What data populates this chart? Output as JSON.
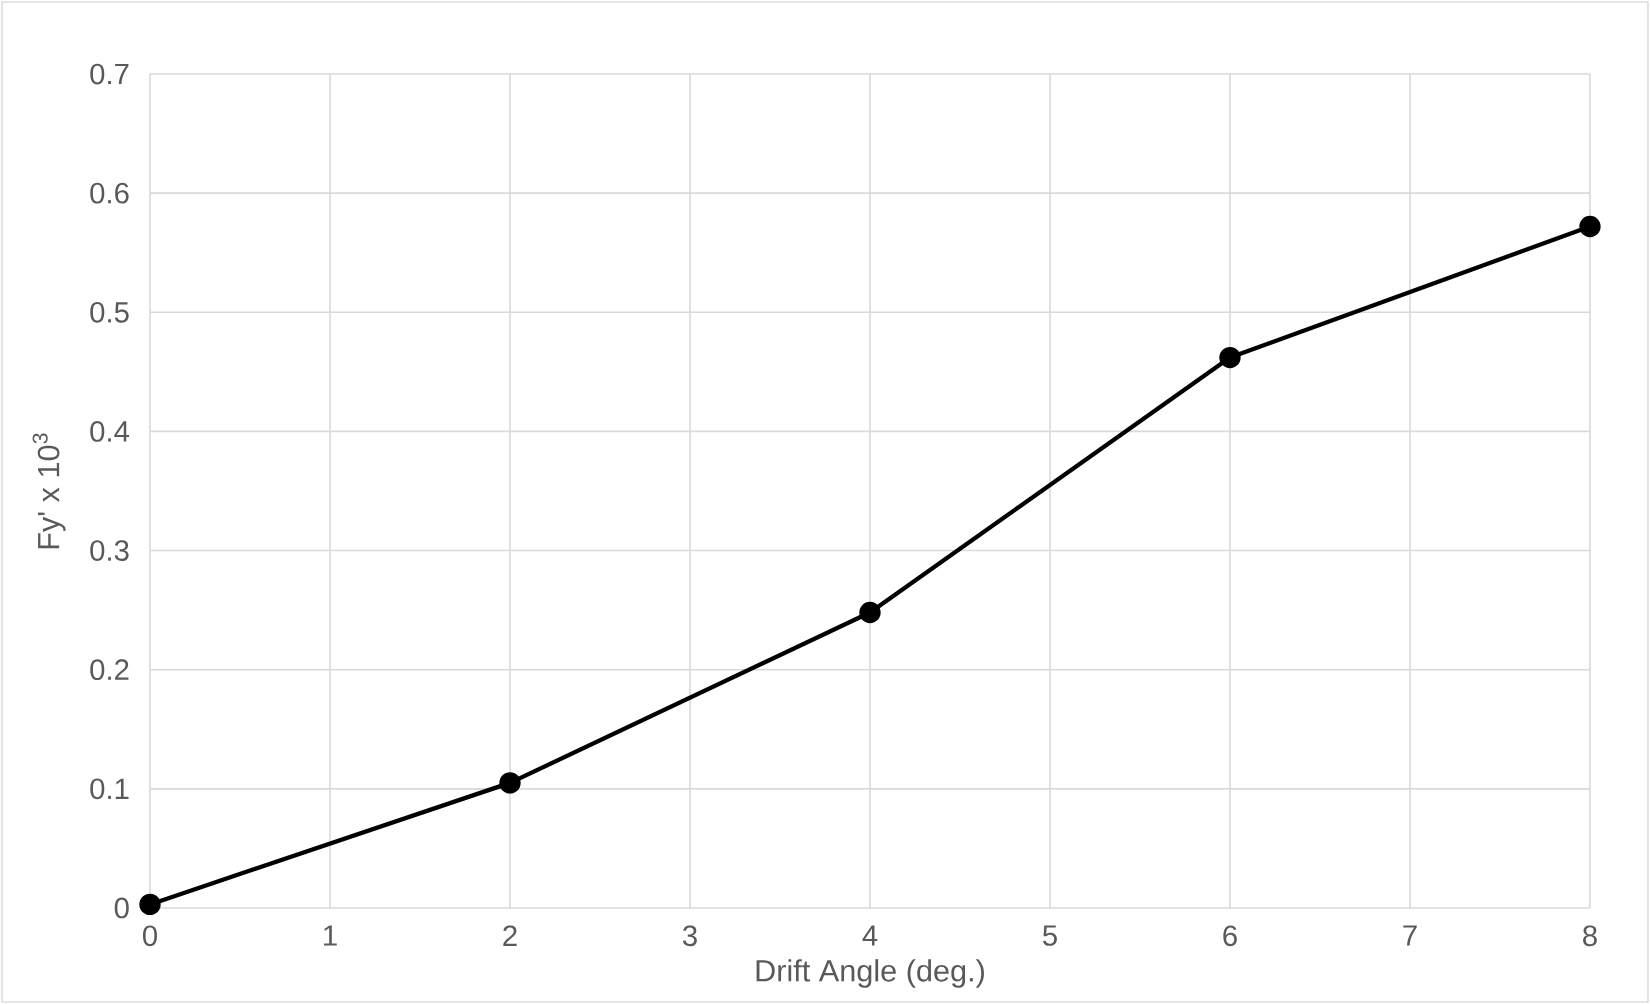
{
  "chart_data": {
    "type": "line",
    "xlabel": "Drift Angle (deg.)",
    "ylabel": "Fy' x 10$^{3}$",
    "x": [
      0,
      2,
      4,
      6,
      8
    ],
    "series": [
      {
        "color": "#000000",
        "values": [
          0.003,
          0.105,
          0.248,
          0.462,
          0.572
        ]
      }
    ],
    "xlim": [
      0,
      8
    ],
    "xticks": [
      0,
      1,
      2,
      3,
      4,
      5,
      6,
      7,
      8
    ],
    "ylim": [
      0,
      0.7
    ],
    "yticks": [
      0,
      0.1,
      0.2,
      0.3,
      0.4,
      0.5,
      0.6,
      0.7
    ],
    "grid": true,
    "marker": "circle",
    "line_style": "solid"
  }
}
